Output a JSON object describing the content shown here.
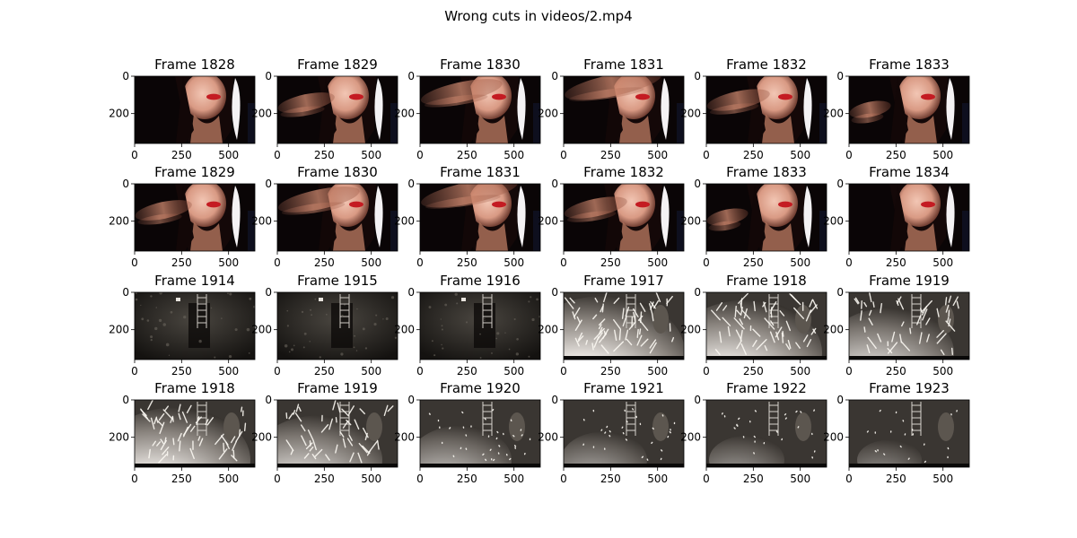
{
  "figure": {
    "title": "Wrong cuts in videos/2.mp4"
  },
  "chart_data": {
    "type": "image-grid",
    "title": "Wrong cuts in videos/2.mp4",
    "rows": 4,
    "cols": 6,
    "image_width": 640,
    "image_height": 360,
    "x_ticks": [
      0,
      250,
      500
    ],
    "y_ticks": [
      0,
      200
    ],
    "panels": [
      {
        "title": "Frame 1828",
        "scene": "face",
        "hand": 0.0
      },
      {
        "title": "Frame 1829",
        "scene": "face",
        "hand": 0.35
      },
      {
        "title": "Frame 1830",
        "scene": "face",
        "hand": 0.75
      },
      {
        "title": "Frame 1831",
        "scene": "face",
        "hand": 1.0
      },
      {
        "title": "Frame 1832",
        "scene": "face",
        "hand": 0.45
      },
      {
        "title": "Frame 1833",
        "scene": "face",
        "hand": 0.1
      },
      {
        "title": "Frame 1829",
        "scene": "face",
        "hand": 0.35
      },
      {
        "title": "Frame 1830",
        "scene": "face",
        "hand": 0.75
      },
      {
        "title": "Frame 1831",
        "scene": "face",
        "hand": 1.0
      },
      {
        "title": "Frame 1832",
        "scene": "face",
        "hand": 0.45
      },
      {
        "title": "Frame 1833",
        "scene": "face",
        "hand": 0.1
      },
      {
        "title": "Frame 1834",
        "scene": "face",
        "hand": 0.0
      },
      {
        "title": "Frame 1914",
        "scene": "dark",
        "sparks": 0.0
      },
      {
        "title": "Frame 1915",
        "scene": "dark",
        "sparks": 0.0
      },
      {
        "title": "Frame 1916",
        "scene": "dark",
        "sparks": 0.0
      },
      {
        "title": "Frame 1917",
        "scene": "burst",
        "sparks": 1.0
      },
      {
        "title": "Frame 1918",
        "scene": "burst",
        "sparks": 0.9
      },
      {
        "title": "Frame 1919",
        "scene": "burst",
        "sparks": 0.7
      },
      {
        "title": "Frame 1918",
        "scene": "burst",
        "sparks": 0.9
      },
      {
        "title": "Frame 1919",
        "scene": "burst",
        "sparks": 0.7
      },
      {
        "title": "Frame 1920",
        "scene": "burst",
        "sparks": 0.45
      },
      {
        "title": "Frame 1921",
        "scene": "burst",
        "sparks": 0.3
      },
      {
        "title": "Frame 1922",
        "scene": "burst",
        "sparks": 0.2
      },
      {
        "title": "Frame 1923",
        "scene": "burst",
        "sparks": 0.1
      }
    ]
  }
}
